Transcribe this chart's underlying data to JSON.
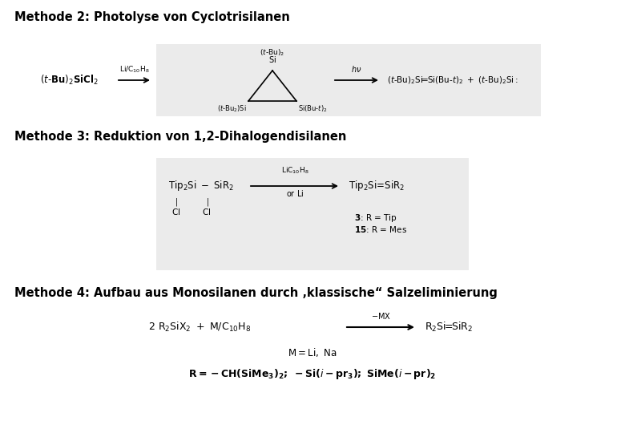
{
  "background_color": "#ffffff",
  "figsize": [
    7.8,
    5.4
  ],
  "dpi": 100,
  "title1": "Methode 2: Photolyse von Cyclotrisilanen",
  "title2": "Methode 3: Reduktion von 1,2-Dihalogendisilanen",
  "title3": "Methode 4: Aufbau aus Monosilanen durch ‚klassische“ Salzeliminierung",
  "title_fontsize": 10.5,
  "content_fontsize": 8.5,
  "small_fontsize": 7.5,
  "box1_color": "#ebebeb",
  "box2_color": "#ebebeb",
  "note_fontsize": 7.5
}
